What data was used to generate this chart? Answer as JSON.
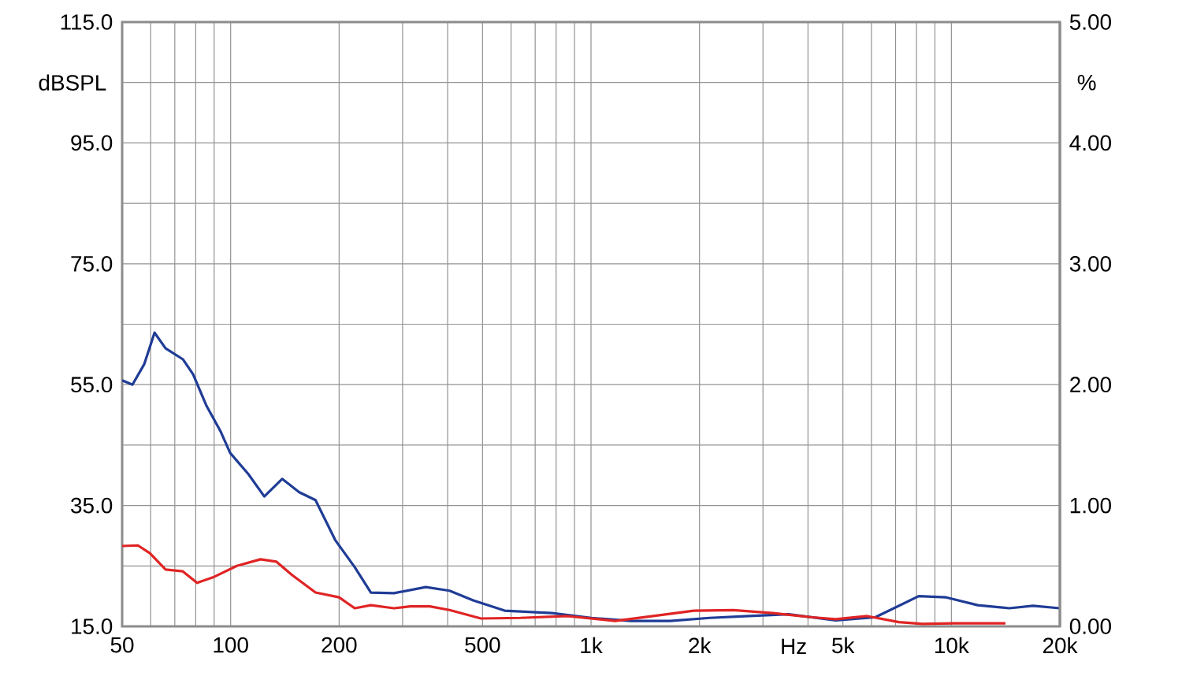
{
  "chart_data": {
    "type": "line",
    "xlabel": "Hz",
    "ylabel": "dBSPL",
    "y2label": "%",
    "log": "x",
    "grid": true,
    "xlim": [
      50,
      20000
    ],
    "ylim": [
      15,
      115
    ],
    "y2lim": [
      0,
      5
    ],
    "xticks": [
      50,
      {
        "value": 60,
        "label": null
      },
      {
        "value": 70,
        "label": null
      },
      {
        "value": 80,
        "label": null
      },
      {
        "value": 90,
        "label": null
      },
      100,
      200,
      {
        "value": 300,
        "label": null
      },
      {
        "value": 400,
        "label": null
      },
      500,
      {
        "value": 600,
        "label": null
      },
      {
        "value": 700,
        "label": null
      },
      {
        "value": 800,
        "label": null
      },
      {
        "value": 900,
        "label": null
      },
      {
        "value": 1000,
        "label": "1k"
      },
      {
        "value": 2000,
        "label": "2k"
      },
      {
        "value": 3000,
        "label": null
      },
      {
        "value": 4000,
        "label": null
      },
      {
        "value": 5000,
        "label": "5k"
      },
      {
        "value": 6000,
        "label": null
      },
      {
        "value": 7000,
        "label": null
      },
      {
        "value": 8000,
        "label": null
      },
      {
        "value": 9000,
        "label": null
      },
      {
        "value": 10000,
        "label": "10k"
      },
      {
        "value": 20000,
        "label": "20k"
      }
    ],
    "yticks": [
      {
        "value": 15,
        "label": "15.0"
      },
      {
        "value": 25,
        "label": null
      },
      {
        "value": 35,
        "label": "35.0"
      },
      {
        "value": 45,
        "label": null
      },
      {
        "value": 55,
        "label": "55.0"
      },
      {
        "value": 65,
        "label": null
      },
      {
        "value": 75,
        "label": "75.0"
      },
      {
        "value": 85,
        "label": null
      },
      {
        "value": 95,
        "label": "95.0"
      },
      {
        "value": 105,
        "label": null
      },
      {
        "value": 115,
        "label": "115.0"
      }
    ],
    "y2ticks": [
      {
        "value": 0,
        "label": "0.00"
      },
      {
        "value": 1,
        "label": "1.00"
      },
      {
        "value": 2,
        "label": "2.00"
      },
      {
        "value": 3,
        "label": "3.00"
      },
      {
        "value": 4,
        "label": "4.00"
      },
      {
        "value": 5,
        "label": "5.00"
      }
    ],
    "series": [
      {
        "color": "#1f3c96",
        "line_style": "solid",
        "x": [
          50,
          53.4,
          57.6,
          61.5,
          66,
          73.7,
          78.7,
          85.7,
          93.9,
          99.7,
          112,
          124,
          139,
          155,
          172,
          195,
          221,
          245,
          284,
          348,
          405,
          471,
          576,
          779,
          1002,
          1289,
          1659,
          2134,
          2745,
          3532,
          4776,
          6145,
          8115,
          9676,
          11837,
          14480,
          16843,
          20000
        ],
        "values": [
          55.7,
          55.0,
          58.4,
          63.6,
          61.0,
          59.2,
          56.7,
          51.5,
          47.2,
          43.7,
          40.2,
          36.5,
          39.4,
          37.2,
          35.9,
          29.3,
          24.8,
          20.6,
          20.5,
          21.5,
          20.9,
          19.3,
          17.6,
          17.2,
          16.4,
          15.9,
          15.9,
          16.4,
          16.7,
          17.0,
          16.0,
          16.5,
          20.0,
          19.8,
          18.5,
          18.0,
          18.4,
          18.0
        ]
      },
      {
        "color": "#e02424",
        "line_style": "solid",
        "x": [
          50,
          55.3,
          59.7,
          66,
          73.7,
          80.7,
          89.3,
          104,
          121,
          134,
          148,
          172,
          200,
          221,
          245,
          284,
          315,
          357,
          405,
          495,
          637,
          861,
          1166,
          1577,
          1929,
          2482,
          3193,
          4109,
          4776,
          5844,
          7152,
          8320,
          10174,
          14124
        ],
        "values": [
          28.3,
          28.4,
          27.1,
          24.4,
          24.1,
          22.2,
          23.1,
          25.0,
          26.1,
          25.7,
          23.5,
          20.6,
          19.8,
          18.0,
          18.5,
          18.0,
          18.3,
          18.3,
          17.7,
          16.3,
          16.4,
          16.7,
          15.9,
          16.9,
          17.6,
          17.7,
          17.2,
          16.5,
          16.2,
          16.7,
          15.7,
          15.4,
          15.5,
          15.5
        ]
      }
    ]
  }
}
